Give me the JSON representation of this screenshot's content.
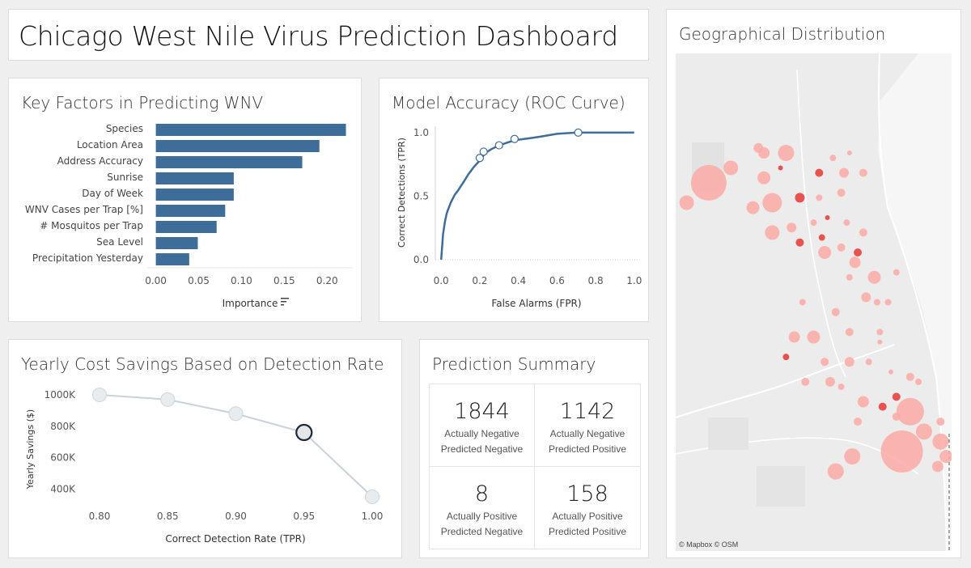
{
  "title": "Chicago West Nile Virus Prediction Dashboard",
  "factors": {
    "title": "Key Factors in Predicting WNV",
    "xlabel": "Importance",
    "sort_icon": "sort-descending-icon"
  },
  "roc": {
    "title": "Model Accuracy (ROC Curve)",
    "xlabel": "False Alarms (FPR)",
    "ylabel": "Correct Detections (TPR)"
  },
  "savings": {
    "title": "Yearly Cost Savings Based on Detection Rate",
    "xlabel": "Correct Detection Rate (TPR)",
    "ylabel": "Yearly Savings ($)"
  },
  "summary": {
    "title": "Prediction Summary",
    "cells": [
      {
        "value": "1844",
        "line1": "Actually Negative",
        "line2": "Predicted Negative"
      },
      {
        "value": "1142",
        "line1": "Actually Negative",
        "line2": "Predicted Positive"
      },
      {
        "value": "8",
        "line1": "Actually Positive",
        "line2": "Predicted Negative"
      },
      {
        "value": "158",
        "line1": "Actually Positive",
        "line2": "Predicted Positive"
      }
    ]
  },
  "map": {
    "title": "Geographical Distribution",
    "credit": "© Mapbox  © OSM",
    "colors": {
      "light": "#fcaaa4",
      "dark": "#e8423f",
      "background": "#ececec"
    }
  },
  "chart_data": [
    {
      "type": "bar",
      "orientation": "horizontal",
      "categories": [
        "Species",
        "Location Area",
        "Address Accuracy",
        "Sunrise",
        "Day of Week",
        "WNV Cases per Trap [%]",
        "# Mosquitos per Trap",
        "Sea Level",
        "Precipitation Yesterday"
      ],
      "values": [
        0.222,
        0.191,
        0.171,
        0.091,
        0.091,
        0.081,
        0.071,
        0.049,
        0.039
      ],
      "xlabel": "Importance",
      "xlim": [
        -0.01,
        0.23
      ],
      "xticks": [
        "0.00",
        "0.05",
        "0.10",
        "0.15",
        "0.20"
      ],
      "color": "#3e6d99"
    },
    {
      "type": "line",
      "x": [
        0.0,
        0.005,
        0.01,
        0.02,
        0.03,
        0.05,
        0.07,
        0.09,
        0.12,
        0.14,
        0.17,
        0.2,
        0.23,
        0.26,
        0.3,
        0.34,
        0.38,
        0.43,
        0.48,
        0.52,
        0.6,
        0.7,
        0.8,
        0.9,
        1.0
      ],
      "y": [
        0.0,
        0.1,
        0.2,
        0.3,
        0.37,
        0.45,
        0.51,
        0.55,
        0.62,
        0.67,
        0.73,
        0.78,
        0.84,
        0.87,
        0.9,
        0.92,
        0.94,
        0.95,
        0.96,
        0.97,
        0.99,
        1.0,
        1.0,
        1.0,
        1.0
      ],
      "highlight_points": [
        {
          "x": 0.2,
          "y": 0.8
        },
        {
          "x": 0.22,
          "y": 0.85
        },
        {
          "x": 0.3,
          "y": 0.9
        },
        {
          "x": 0.38,
          "y": 0.95
        },
        {
          "x": 0.71,
          "y": 1.0
        }
      ],
      "xlabel": "False Alarms (FPR)",
      "ylabel": "Correct Detections (TPR)",
      "xlim": [
        -0.03,
        1.03
      ],
      "ylim": [
        0,
        1.05
      ],
      "xticks": [
        "0.0",
        "0.2",
        "0.4",
        "0.6",
        "0.8",
        "1.0"
      ],
      "yticks": [
        "0.0",
        "0.5",
        "1.0"
      ],
      "color": "#3e6d99"
    },
    {
      "type": "line",
      "x": [
        0.8,
        0.85,
        0.9,
        0.95,
        1.0
      ],
      "y": [
        1000000,
        970000,
        880000,
        760000,
        350000
      ],
      "highlighted": 0.95,
      "xlabel": "Correct Detection Rate (TPR)",
      "ylabel": "Yearly Savings ($)",
      "xlim": [
        0.8,
        1.0
      ],
      "ylim": [
        300000,
        1050000
      ],
      "xticks": [
        "0.80",
        "0.85",
        "0.90",
        "0.95",
        "1.00"
      ],
      "yticks": [
        "400K",
        "600K",
        "800K",
        "1000K"
      ],
      "color": "#c7d2da"
    },
    {
      "type": "scatter",
      "description_of_points": "proportional circles of WNV trap locations",
      "points": [
        {
          "x": 0.12,
          "y": 0.26,
          "r": 22,
          "c": "light"
        },
        {
          "x": 0.04,
          "y": 0.3,
          "r": 9,
          "c": "light"
        },
        {
          "x": 0.2,
          "y": 0.23,
          "r": 9,
          "c": "light"
        },
        {
          "x": 0.32,
          "y": 0.2,
          "r": 7,
          "c": "light"
        },
        {
          "x": 0.4,
          "y": 0.2,
          "r": 10,
          "c": "light"
        },
        {
          "x": 0.32,
          "y": 0.25,
          "r": 8,
          "c": "light"
        },
        {
          "x": 0.35,
          "y": 0.3,
          "r": 12,
          "c": "light"
        },
        {
          "x": 0.45,
          "y": 0.29,
          "r": 6,
          "c": "dark"
        },
        {
          "x": 0.38,
          "y": 0.23,
          "r": 3,
          "c": "dark"
        },
        {
          "x": 0.28,
          "y": 0.31,
          "r": 8,
          "c": "light"
        },
        {
          "x": 0.52,
          "y": 0.24,
          "r": 5,
          "c": "dark"
        },
        {
          "x": 0.61,
          "y": 0.24,
          "r": 6,
          "c": "light"
        },
        {
          "x": 0.68,
          "y": 0.24,
          "r": 5,
          "c": "light"
        },
        {
          "x": 0.6,
          "y": 0.28,
          "r": 5,
          "c": "light"
        },
        {
          "x": 0.42,
          "y": 0.35,
          "r": 6,
          "c": "light"
        },
        {
          "x": 0.35,
          "y": 0.36,
          "r": 9,
          "c": "light"
        },
        {
          "x": 0.45,
          "y": 0.38,
          "r": 5,
          "c": "dark"
        },
        {
          "x": 0.54,
          "y": 0.4,
          "r": 8,
          "c": "light"
        },
        {
          "x": 0.6,
          "y": 0.39,
          "r": 5,
          "c": "light"
        },
        {
          "x": 0.65,
          "y": 0.42,
          "r": 7,
          "c": "light"
        },
        {
          "x": 0.72,
          "y": 0.45,
          "r": 8,
          "c": "light"
        },
        {
          "x": 0.8,
          "y": 0.44,
          "r": 4,
          "c": "light"
        },
        {
          "x": 0.69,
          "y": 0.49,
          "r": 6,
          "c": "light"
        },
        {
          "x": 0.58,
          "y": 0.52,
          "r": 5,
          "c": "light"
        },
        {
          "x": 0.74,
          "y": 0.56,
          "r": 4,
          "c": "light"
        },
        {
          "x": 0.43,
          "y": 0.57,
          "r": 7,
          "c": "light"
        },
        {
          "x": 0.5,
          "y": 0.57,
          "r": 8,
          "c": "light"
        },
        {
          "x": 0.63,
          "y": 0.56,
          "r": 5,
          "c": "light"
        },
        {
          "x": 0.54,
          "y": 0.62,
          "r": 5,
          "c": "light"
        },
        {
          "x": 0.63,
          "y": 0.62,
          "r": 6,
          "c": "light"
        },
        {
          "x": 0.4,
          "y": 0.61,
          "r": 4,
          "c": "dark"
        },
        {
          "x": 0.56,
          "y": 0.66,
          "r": 6,
          "c": "light"
        },
        {
          "x": 0.7,
          "y": 0.62,
          "r": 4,
          "c": "light"
        },
        {
          "x": 0.78,
          "y": 0.64,
          "r": 3,
          "c": "light"
        },
        {
          "x": 0.75,
          "y": 0.71,
          "r": 5,
          "c": "dark"
        },
        {
          "x": 0.8,
          "y": 0.69,
          "r": 5,
          "c": "dark"
        },
        {
          "x": 0.68,
          "y": 0.7,
          "r": 7,
          "c": "light"
        },
        {
          "x": 0.8,
          "y": 0.73,
          "r": 5,
          "c": "light"
        },
        {
          "x": 0.85,
          "y": 0.65,
          "r": 5,
          "c": "light"
        },
        {
          "x": 0.88,
          "y": 0.66,
          "r": 4,
          "c": "light"
        },
        {
          "x": 0.85,
          "y": 0.72,
          "r": 17,
          "c": "light"
        },
        {
          "x": 0.9,
          "y": 0.76,
          "r": 10,
          "c": "light"
        },
        {
          "x": 0.96,
          "y": 0.74,
          "r": 5,
          "c": "light"
        },
        {
          "x": 0.96,
          "y": 0.78,
          "r": 10,
          "c": "light"
        },
        {
          "x": 0.98,
          "y": 0.81,
          "r": 8,
          "c": "light"
        },
        {
          "x": 0.82,
          "y": 0.8,
          "r": 26,
          "c": "light"
        },
        {
          "x": 0.95,
          "y": 0.83,
          "r": 7,
          "c": "light"
        },
        {
          "x": 0.64,
          "y": 0.81,
          "r": 10,
          "c": "light"
        },
        {
          "x": 0.58,
          "y": 0.84,
          "r": 10,
          "c": "light"
        },
        {
          "x": 0.66,
          "y": 0.74,
          "r": 5,
          "c": "light"
        },
        {
          "x": 0.46,
          "y": 0.5,
          "r": 4,
          "c": "light"
        },
        {
          "x": 0.53,
          "y": 0.37,
          "r": 4,
          "c": "dark"
        },
        {
          "x": 0.62,
          "y": 0.34,
          "r": 4,
          "c": "light"
        },
        {
          "x": 0.68,
          "y": 0.36,
          "r": 5,
          "c": "light"
        },
        {
          "x": 0.66,
          "y": 0.4,
          "r": 5,
          "c": "dark"
        },
        {
          "x": 0.73,
          "y": 0.5,
          "r": 4,
          "c": "light"
        },
        {
          "x": 0.77,
          "y": 0.5,
          "r": 4,
          "c": "light"
        },
        {
          "x": 0.57,
          "y": 0.21,
          "r": 4,
          "c": "light"
        },
        {
          "x": 0.63,
          "y": 0.2,
          "r": 3,
          "c": "light"
        },
        {
          "x": 0.3,
          "y": 0.19,
          "r": 6,
          "c": "light"
        },
        {
          "x": 0.52,
          "y": 0.29,
          "r": 4,
          "c": "light"
        },
        {
          "x": 0.55,
          "y": 0.33,
          "r": 3,
          "c": "dark"
        },
        {
          "x": 0.5,
          "y": 0.34,
          "r": 4,
          "c": "light"
        },
        {
          "x": 0.63,
          "y": 0.45,
          "r": 4,
          "c": "light"
        },
        {
          "x": 0.74,
          "y": 0.58,
          "r": 3,
          "c": "light"
        },
        {
          "x": 0.6,
          "y": 0.67,
          "r": 4,
          "c": "light"
        },
        {
          "x": 0.47,
          "y": 0.66,
          "r": 5,
          "c": "light"
        }
      ]
    }
  ]
}
